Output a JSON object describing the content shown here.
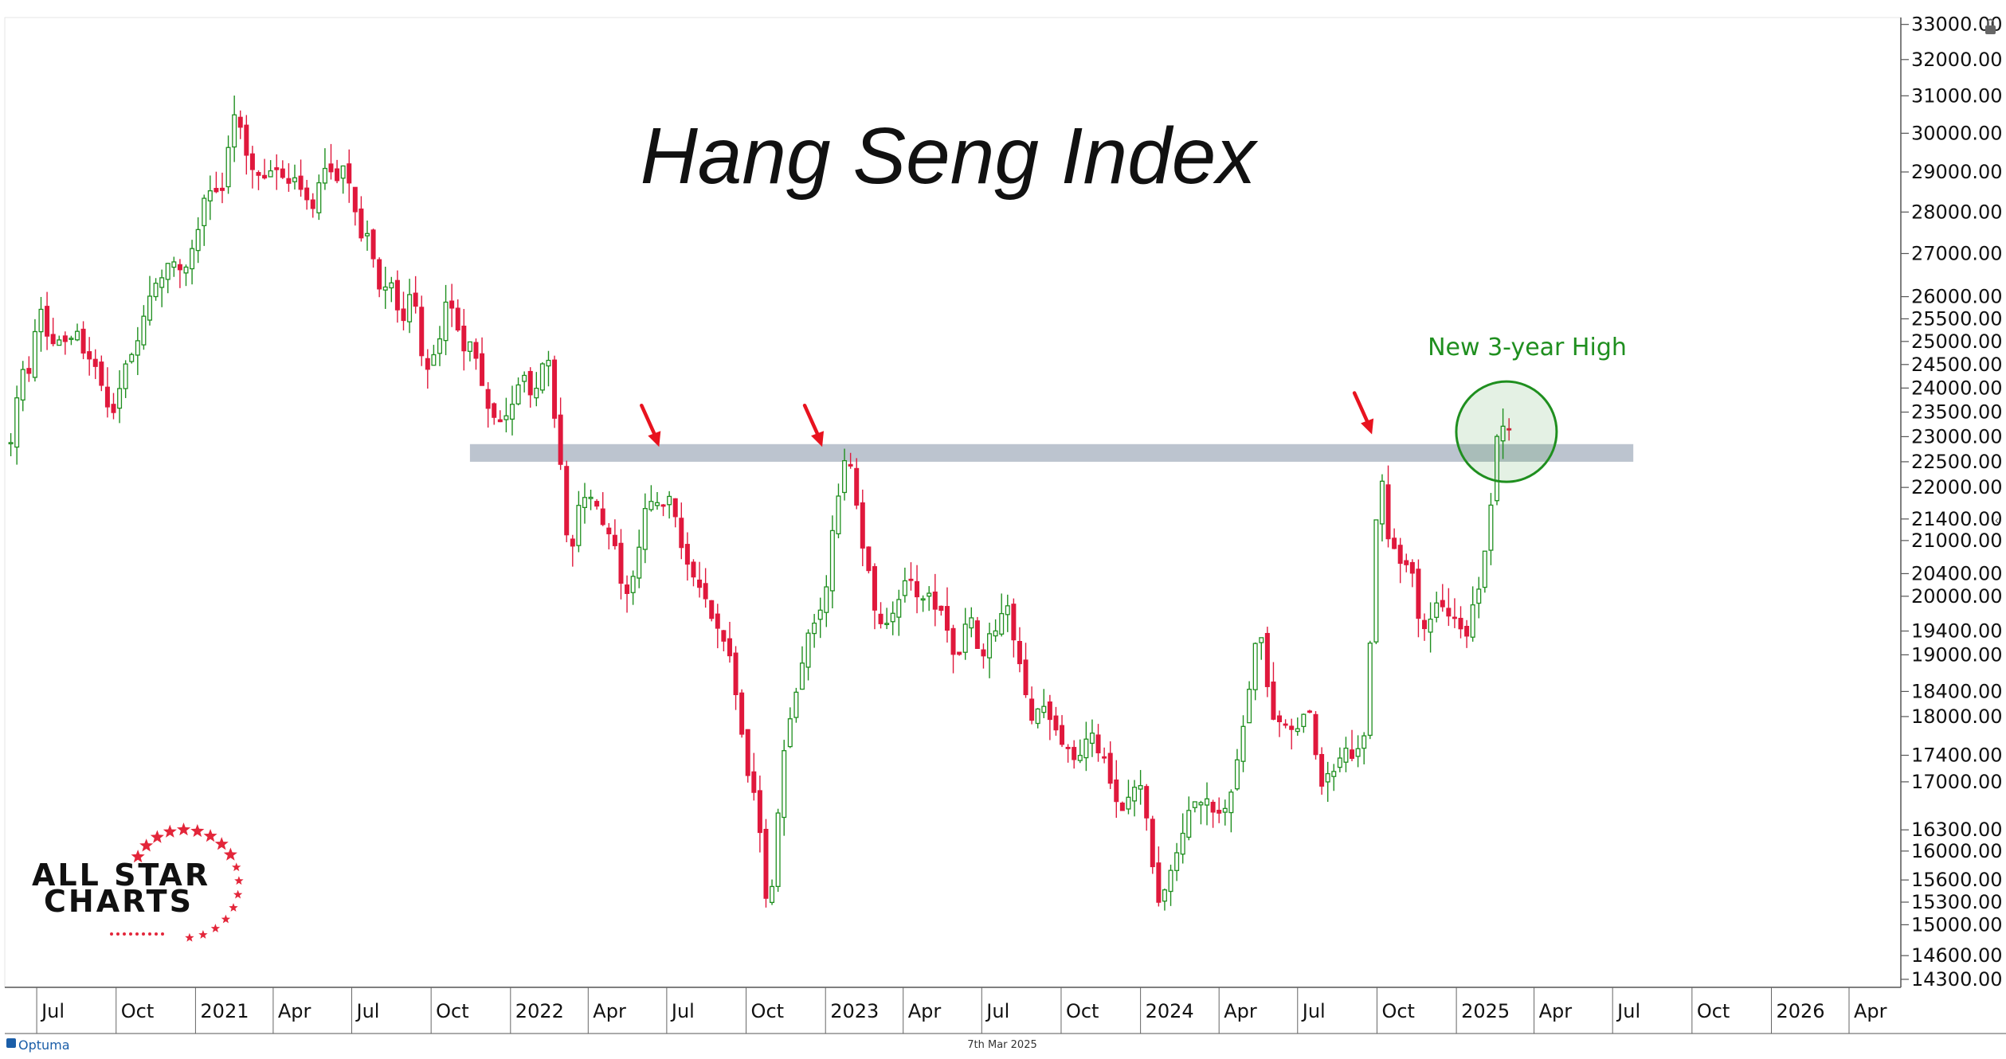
{
  "chart_data": {
    "type": "candlestick",
    "title": "Hang Seng Index",
    "annotation": "New 3-year High",
    "scale": "log",
    "ylim": [
      14200,
      33200
    ],
    "y_ticks": [
      "33000.00",
      "32000.00",
      "31000.00",
      "30000.00",
      "29000.00",
      "28000.00",
      "27000.00",
      "26000.00",
      "25500.00",
      "25000.00",
      "24500.00",
      "24000.00",
      "23500.00",
      "23000.00",
      "22500.00",
      "22000.00",
      "21400.00",
      "21000.00",
      "20400.00",
      "20000.00",
      "19400.00",
      "19000.00",
      "18400.00",
      "18000.00",
      "17400.00",
      "17000.00",
      "16300.00",
      "16000.00",
      "15600.00",
      "15300.00",
      "15000.00",
      "14600.00",
      "14300.00"
    ],
    "y_tick_values": [
      33000,
      32000,
      31000,
      30000,
      29000,
      28000,
      27000,
      26000,
      25500,
      25000,
      24500,
      24000,
      23500,
      23000,
      22500,
      22000,
      21400,
      21000,
      20400,
      20000,
      19400,
      19000,
      18400,
      18000,
      17400,
      17000,
      16300,
      16000,
      15600,
      15300,
      15000,
      14600,
      14300
    ],
    "x_ticks": [
      {
        "label": "Jul",
        "date": "2020-07-01"
      },
      {
        "label": "Oct",
        "date": "2020-10-01"
      },
      {
        "label": "2021",
        "date": "2021-01-01"
      },
      {
        "label": "Apr",
        "date": "2021-04-01"
      },
      {
        "label": "Jul",
        "date": "2021-07-01"
      },
      {
        "label": "Oct",
        "date": "2021-10-01"
      },
      {
        "label": "2022",
        "date": "2022-01-01"
      },
      {
        "label": "Apr",
        "date": "2022-04-01"
      },
      {
        "label": "Jul",
        "date": "2022-07-01"
      },
      {
        "label": "Oct",
        "date": "2022-10-01"
      },
      {
        "label": "2023",
        "date": "2023-01-01"
      },
      {
        "label": "Apr",
        "date": "2023-04-01"
      },
      {
        "label": "Jul",
        "date": "2023-07-01"
      },
      {
        "label": "Oct",
        "date": "2023-10-01"
      },
      {
        "label": "2024",
        "date": "2024-01-01"
      },
      {
        "label": "Apr",
        "date": "2024-04-01"
      },
      {
        "label": "Jul",
        "date": "2024-07-01"
      },
      {
        "label": "Oct",
        "date": "2024-10-01"
      },
      {
        "label": "2025",
        "date": "2025-01-01"
      },
      {
        "label": "Apr",
        "date": "2025-04-01"
      },
      {
        "label": "Jul",
        "date": "2025-07-01"
      },
      {
        "label": "Oct",
        "date": "2025-10-01"
      },
      {
        "label": "2026",
        "date": "2026-01-01"
      },
      {
        "label": "Apr",
        "date": "2026-04-01"
      }
    ],
    "x_range": [
      "2020-05-25",
      "2026-05-31"
    ],
    "resistance_zone": {
      "from": "2021-11-15",
      "to": "2025-07-25",
      "low": 22500,
      "high": 22850
    },
    "highlight_circle": {
      "date": "2025-02-28",
      "price": 23100
    },
    "arrows": [
      {
        "date": "2022-06-24",
        "price": 22700
      },
      {
        "date": "2022-12-30",
        "price": 22700
      },
      {
        "date": "2024-09-27",
        "price": 22950
      }
    ],
    "colors": {
      "up": "#1f8f1f",
      "down": "#e0183c",
      "zone": "#b8c1cc",
      "arrow": "#e8131f",
      "circle": "#1f8f1f"
    },
    "waypoints": [
      [
        "2020-06-01",
        22900
      ],
      [
        "2020-06-12",
        24300
      ],
      [
        "2020-06-26",
        24500
      ],
      [
        "2020-07-03",
        25900
      ],
      [
        "2020-07-17",
        24900
      ],
      [
        "2020-07-31",
        24900
      ],
      [
        "2020-08-14",
        25200
      ],
      [
        "2020-08-28",
        24700
      ],
      [
        "2020-09-11",
        24400
      ],
      [
        "2020-09-25",
        23200
      ],
      [
        "2020-10-09",
        24300
      ],
      [
        "2020-10-23",
        24900
      ],
      [
        "2020-11-06",
        25700
      ],
      [
        "2020-11-20",
        26500
      ],
      [
        "2020-12-04",
        26800
      ],
      [
        "2020-12-18",
        26500
      ],
      [
        "2021-01-01",
        27200
      ],
      [
        "2021-01-15",
        28600
      ],
      [
        "2021-01-29",
        28300
      ],
      [
        "2021-02-12",
        30200
      ],
      [
        "2021-02-19",
        30600
      ],
      [
        "2021-03-05",
        29100
      ],
      [
        "2021-03-19",
        28900
      ],
      [
        "2021-04-02",
        28900
      ],
      [
        "2021-04-16",
        28900
      ],
      [
        "2021-04-30",
        28700
      ],
      [
        "2021-05-14",
        28000
      ],
      [
        "2021-05-28",
        29100
      ],
      [
        "2021-06-11",
        28800
      ],
      [
        "2021-06-25",
        29300
      ],
      [
        "2021-07-09",
        27400
      ],
      [
        "2021-07-23",
        27300
      ],
      [
        "2021-07-30",
        26200
      ],
      [
        "2021-08-13",
        26400
      ],
      [
        "2021-08-27",
        25400
      ],
      [
        "2021-09-10",
        26200
      ],
      [
        "2021-09-24",
        24200
      ],
      [
        "2021-10-08",
        24800
      ],
      [
        "2021-10-22",
        26100
      ],
      [
        "2021-11-05",
        24900
      ],
      [
        "2021-11-19",
        25000
      ],
      [
        "2021-12-03",
        23700
      ],
      [
        "2021-12-17",
        23200
      ],
      [
        "2021-12-31",
        23400
      ],
      [
        "2022-01-14",
        24400
      ],
      [
        "2022-01-28",
        23600
      ],
      [
        "2022-02-11",
        24900
      ],
      [
        "2022-02-25",
        22800
      ],
      [
        "2022-03-11",
        20600
      ],
      [
        "2022-03-18",
        21400
      ],
      [
        "2022-04-01",
        22000
      ],
      [
        "2022-04-15",
        21500
      ],
      [
        "2022-04-29",
        21100
      ],
      [
        "2022-05-13",
        19900
      ],
      [
        "2022-05-27",
        20700
      ],
      [
        "2022-06-10",
        21800
      ],
      [
        "2022-06-24",
        21700
      ],
      [
        "2022-07-08",
        21700
      ],
      [
        "2022-07-22",
        20600
      ],
      [
        "2022-08-05",
        20200
      ],
      [
        "2022-08-19",
        19800
      ],
      [
        "2022-09-02",
        19450
      ],
      [
        "2022-09-16",
        18800
      ],
      [
        "2022-09-30",
        17200
      ],
      [
        "2022-10-14",
        16600
      ],
      [
        "2022-10-28",
        14900
      ],
      [
        "2022-11-04",
        16200
      ],
      [
        "2022-11-18",
        17900
      ],
      [
        "2022-12-02",
        18700
      ],
      [
        "2022-12-16",
        19500
      ],
      [
        "2022-12-30",
        19800
      ],
      [
        "2023-01-13",
        21700
      ],
      [
        "2023-01-27",
        22700
      ],
      [
        "2023-02-10",
        21200
      ],
      [
        "2023-02-24",
        20000
      ],
      [
        "2023-03-10",
        19300
      ],
      [
        "2023-03-24",
        19900
      ],
      [
        "2023-04-07",
        20300
      ],
      [
        "2023-04-21",
        19900
      ],
      [
        "2023-05-05",
        20000
      ],
      [
        "2023-05-19",
        19500
      ],
      [
        "2023-06-02",
        18900
      ],
      [
        "2023-06-16",
        19900
      ],
      [
        "2023-06-30",
        18900
      ],
      [
        "2023-07-14",
        19400
      ],
      [
        "2023-07-28",
        19900
      ],
      [
        "2023-08-11",
        19100
      ],
      [
        "2023-08-25",
        18000
      ],
      [
        "2023-09-08",
        18200
      ],
      [
        "2023-09-22",
        17800
      ],
      [
        "2023-10-06",
        17500
      ],
      [
        "2023-10-20",
        17200
      ],
      [
        "2023-11-03",
        17700
      ],
      [
        "2023-11-17",
        17400
      ],
      [
        "2023-12-01",
        16800
      ],
      [
        "2023-12-15",
        16600
      ],
      [
        "2023-12-29",
        17000
      ],
      [
        "2024-01-12",
        16300
      ],
      [
        "2024-01-19",
        15200
      ],
      [
        "2024-02-02",
        15500
      ],
      [
        "2024-02-16",
        16200
      ],
      [
        "2024-03-01",
        16600
      ],
      [
        "2024-03-15",
        16700
      ],
      [
        "2024-03-29",
        16500
      ],
      [
        "2024-04-12",
        16700
      ],
      [
        "2024-04-26",
        17600
      ],
      [
        "2024-05-10",
        18900
      ],
      [
        "2024-05-17",
        19600
      ],
      [
        "2024-05-31",
        18100
      ],
      [
        "2024-06-14",
        17900
      ],
      [
        "2024-06-28",
        17700
      ],
      [
        "2024-07-12",
        18300
      ],
      [
        "2024-07-26",
        17000
      ],
      [
        "2024-08-09",
        17100
      ],
      [
        "2024-08-23",
        17600
      ],
      [
        "2024-09-06",
        17400
      ],
      [
        "2024-09-13",
        17400
      ],
      [
        "2024-09-20",
        18300
      ],
      [
        "2024-09-27",
        20600
      ],
      [
        "2024-10-04",
        22700
      ],
      [
        "2024-10-11",
        21250
      ],
      [
        "2024-10-25",
        20600
      ],
      [
        "2024-11-08",
        20700
      ],
      [
        "2024-11-22",
        19200
      ],
      [
        "2024-12-06",
        19900
      ],
      [
        "2024-12-20",
        19700
      ],
      [
        "2025-01-03",
        19700
      ],
      [
        "2025-01-10",
        19100
      ],
      [
        "2025-01-24",
        20000
      ],
      [
        "2025-02-07",
        21100
      ],
      [
        "2025-02-14",
        22600
      ],
      [
        "2025-02-21",
        23500
      ],
      [
        "2025-02-28",
        22900
      ],
      [
        "2025-03-07",
        23600
      ]
    ]
  },
  "footer": {
    "brand": "Optuma",
    "date": "7th Mar 2025"
  },
  "logo": {
    "line1": "ALL STAR",
    "line2": "CHARTS"
  },
  "colors": {
    "axis": "#555555",
    "text": "#111111",
    "logo_red": "#e3263a"
  }
}
